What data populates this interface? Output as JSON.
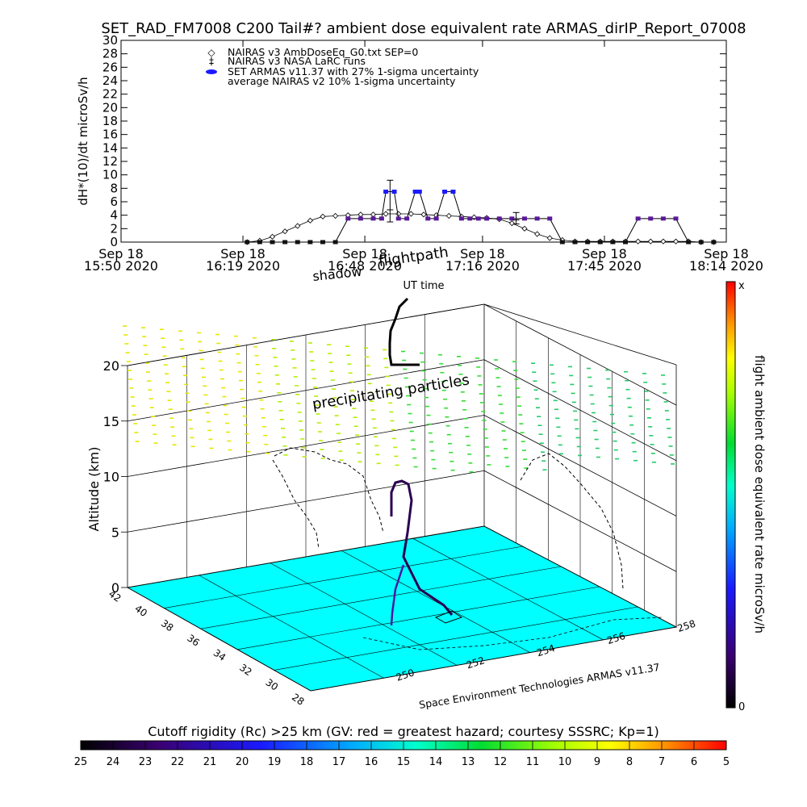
{
  "title": "SET_RAD_FM7008  C200 Tail#? ambient dose equivalent rate ARMAS_dirIP_Report_07008",
  "colors": {
    "armas": "#1a1aff",
    "armas_purple": "#5a1a9a",
    "ground": "#00ffff",
    "line": "#000000"
  },
  "chart_data": [
    {
      "type": "line",
      "ylabel": "dH*(10)/dt microSv/h",
      "ylim": [
        0,
        30
      ],
      "yticks": [
        0,
        2,
        4,
        6,
        8,
        10,
        12,
        14,
        16,
        18,
        20,
        22,
        24,
        26,
        28,
        30
      ],
      "xlim_minutes": [
        0,
        144
      ],
      "xticks": [
        {
          "line1": "Sep 18",
          "line2": "15:50 2020"
        },
        {
          "line1": "Sep 18",
          "line2": "16:19 2020"
        },
        {
          "line1": "Sep 18",
          "line2": "16:48 2020"
        },
        {
          "line1": "Sep 18",
          "line2": "17:16 2020"
        },
        {
          "line1": "Sep 18",
          "line2": "17:45 2020"
        },
        {
          "line1": "Sep 18",
          "line2": "18:14 2020"
        }
      ],
      "legend": [
        {
          "symbol": "◇",
          "label": "NAIRAS v3 AmbDoseEq_G0.txt SEP=0"
        },
        {
          "symbol": "‡",
          "label": "NAIRAS v3 NASA LaRC runs"
        },
        {
          "symbol": "●",
          "label": "SET ARMAS v11.37 with 27% 1-sigma uncertainty"
        },
        {
          "symbol": "",
          "label": "average NAIRAS v2 10% 1-sigma uncertainty"
        }
      ],
      "series": [
        {
          "name": "NAIRAS v3 AmbDoseEq_G0.txt SEP=0",
          "x": [
            30,
            33,
            36,
            39,
            42,
            45,
            48,
            51,
            54,
            57,
            60,
            63,
            66,
            69,
            72,
            75,
            78,
            81,
            84,
            87,
            90,
            93,
            96,
            99,
            102,
            105,
            108,
            111,
            114,
            117,
            120,
            123,
            126,
            129,
            132,
            135,
            138,
            141
          ],
          "y": [
            0,
            0.2,
            0.8,
            1.6,
            2.4,
            3.2,
            3.8,
            3.9,
            4.0,
            4.1,
            4.1,
            4.2,
            4.2,
            4.2,
            4.1,
            4.0,
            3.9,
            3.8,
            3.7,
            3.6,
            3.4,
            2.8,
            2.0,
            1.2,
            0.6,
            0.3,
            0.1,
            0.1,
            0.1,
            0.1,
            0.1,
            0.1,
            0.1,
            0.1,
            0.1,
            0.1,
            0,
            0
          ]
        },
        {
          "name": "NAIRAS v3 NASA LaRC runs",
          "x": [
            64,
            94
          ],
          "y": [
            4.8,
            3.3
          ],
          "yerr": [
            [
              3.0,
              4.5
            ],
            [
              2.7,
              4.0
            ]
          ],
          "top": [
            9.2,
            4.4
          ]
        },
        {
          "name": "SET ARMAS v11.37 with 27% 1-sigma uncertainty",
          "x": [
            30,
            33,
            36,
            39,
            42,
            45,
            48,
            51,
            54,
            57,
            60,
            62,
            63,
            65,
            66,
            68,
            70,
            71,
            73,
            75,
            77,
            79,
            81,
            83,
            85,
            87,
            90,
            93,
            96,
            99,
            102,
            105,
            108,
            111,
            114,
            117,
            120,
            123,
            126,
            129,
            132,
            135,
            138,
            141
          ],
          "y": [
            0,
            0,
            0,
            0,
            0,
            0,
            0,
            0,
            3.5,
            3.5,
            3.5,
            3.5,
            7.5,
            7.5,
            3.5,
            3.5,
            7.5,
            7.5,
            3.5,
            3.5,
            7.5,
            7.5,
            3.5,
            3.5,
            3.5,
            3.5,
            3.5,
            3.5,
            3.5,
            3.5,
            3.5,
            0,
            0,
            0,
            0,
            0,
            0,
            3.5,
            3.5,
            3.5,
            3.5,
            0,
            0,
            0
          ]
        }
      ]
    },
    {
      "type": "scatter",
      "zlabel": "Altitude (km)",
      "zticks": [
        "0",
        "5",
        "10",
        "15",
        "20"
      ],
      "lat_ticks": [
        "28",
        "30",
        "32",
        "34",
        "36",
        "38",
        "40",
        "42"
      ],
      "lon_ticks": [
        "250",
        "252",
        "254",
        "256",
        "258"
      ],
      "annotations": [
        "shadow",
        "flightpath",
        "UT time",
        "precipitating particles"
      ],
      "credit": "Space Environment Technologies ARMAS v11.37"
    }
  ],
  "colorbar_right": {
    "label": "flight ambient dose equivalent rate microSv/h",
    "top": "x",
    "bottom": "0"
  },
  "colorbar_bottom": {
    "title": "Cutoff rigidity (Rc) >25 km (GV: red = greatest hazard; courtesy SSSRC; Kp=1)",
    "ticks": [
      "25",
      "24",
      "23",
      "22",
      "21",
      "20",
      "19",
      "18",
      "17",
      "16",
      "15",
      "14",
      "13",
      "12",
      "11",
      "10",
      "9",
      "8",
      "7",
      "6",
      "5"
    ]
  }
}
